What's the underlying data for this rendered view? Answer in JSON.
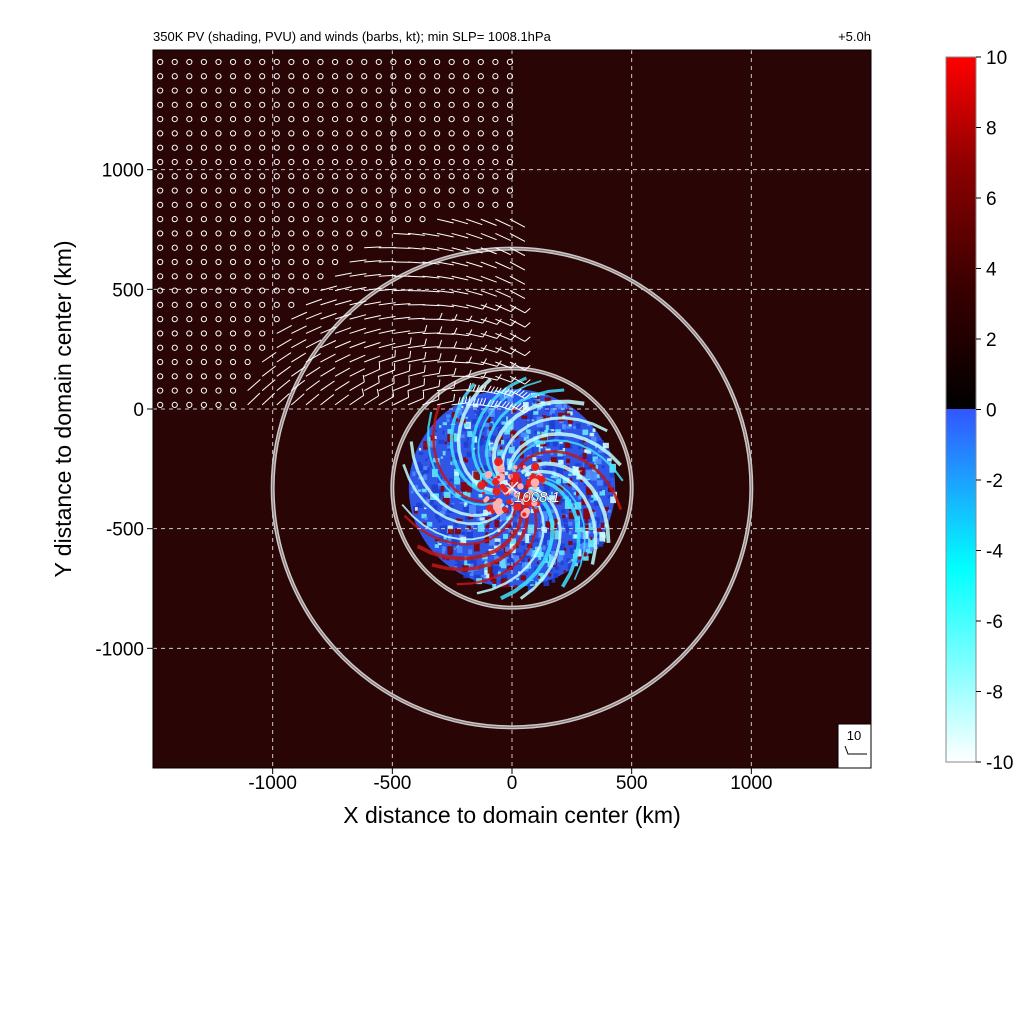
{
  "chart_data": {
    "type": "heatmap",
    "title": "350K PV (shading, PVU) and winds (barbs, kt); min SLP= 1008.1hPa",
    "time_label": "+5.0h",
    "xlabel": "X distance to domain center (km)",
    "ylabel": "Y distance to domain center (km)",
    "xlim": [
      -1500,
      1500
    ],
    "ylim": [
      -1500,
      1500
    ],
    "x_ticks": [
      -1000,
      -500,
      0,
      500,
      1000
    ],
    "y_ticks": [
      1000,
      500,
      0,
      -500,
      -1000
    ],
    "x_tick_labels": [
      "-1000",
      "-500",
      "0",
      "500",
      "1000"
    ],
    "y_tick_labels": [
      "1000",
      "500",
      "0",
      "-500",
      "-1000"
    ],
    "grid": true,
    "colorbar": {
      "range": [
        -10,
        10
      ],
      "ticks": [
        10,
        8,
        6,
        4,
        2,
        0,
        -2,
        -4,
        -6,
        -8,
        -10
      ],
      "tick_labels": [
        "10",
        "8",
        "6",
        "4",
        "2",
        "0",
        "-2",
        "-4",
        "-6",
        "-8",
        "-10"
      ],
      "positive_colors": [
        "#000000",
        "#3a0000",
        "#900000",
        "#ff0000"
      ],
      "negative_colors": [
        "#ffffff",
        "#00ffff",
        "#3355ff"
      ]
    },
    "background_pv": 1.2,
    "vortex_center": [
      0,
      -330
    ],
    "pv_region_radius_km": 440,
    "range_rings_km": [
      500,
      1000
    ],
    "min_slp_label": "1008.1",
    "barb_reference_label": "10",
    "colors": {
      "background_field": "#2a0505",
      "grid": "#cccccc",
      "rings": "#c8c8c8",
      "barbs": "#ffffff"
    }
  }
}
